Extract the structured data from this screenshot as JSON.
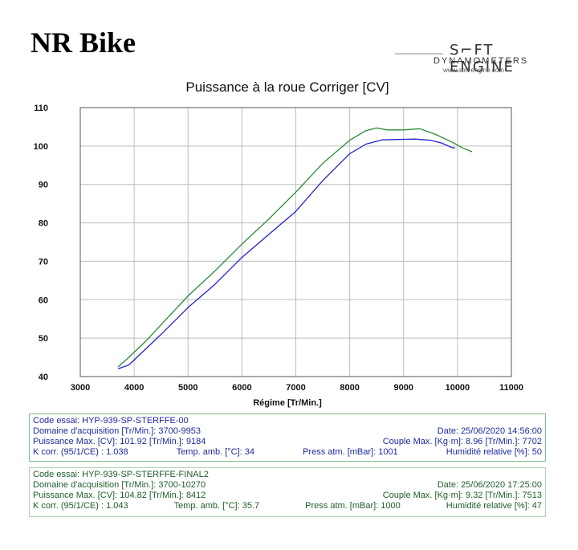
{
  "header": {
    "title": "NR Bike",
    "logo_mark": "S⌐FT ENGINE",
    "logo_sub": "DYNAMOMETERS",
    "logo_url": "www.soft-engine.com"
  },
  "chart_data": {
    "type": "line",
    "title": "Puissance à la roue Corriger [CV]",
    "xlabel": "Régime [Tr/Min.]",
    "ylabel": "",
    "xlim": [
      3000,
      11000
    ],
    "ylim": [
      40,
      110
    ],
    "x_ticks": [
      3000,
      4000,
      5000,
      6000,
      7000,
      8000,
      9000,
      10000,
      11000
    ],
    "y_ticks": [
      40,
      50,
      60,
      70,
      80,
      90,
      100,
      110
    ],
    "x_tick_labels": [
      "3000",
      "4000",
      "5000",
      "6000",
      "7000",
      "8000",
      "9000",
      "10000",
      "11000"
    ],
    "y_tick_labels": [
      "40",
      "50",
      "60",
      "70",
      "80",
      "90",
      "100",
      "110"
    ],
    "grid": true,
    "series": [
      {
        "name": "HYP-939-SP-STERFFE-00",
        "color": "#2222cc",
        "x": [
          3700,
          3900,
          4200,
          4500,
          5000,
          5500,
          6000,
          6500,
          7000,
          7500,
          8000,
          8300,
          8600,
          8900,
          9200,
          9500,
          9700,
          9900,
          9953
        ],
        "y": [
          42,
          43,
          47,
          51,
          58,
          64,
          71,
          77,
          83,
          91,
          98,
          100.5,
          101.6,
          101.7,
          101.8,
          101.5,
          100.8,
          99.6,
          99.5
        ]
      },
      {
        "name": "HYP-939-SP-STERFFE-FINAL2",
        "color": "#2a8a3a",
        "x": [
          3700,
          3900,
          4200,
          4500,
          5000,
          5500,
          6000,
          6500,
          7000,
          7500,
          8000,
          8300,
          8500,
          8700,
          9000,
          9300,
          9600,
          9900,
          10100,
          10270
        ],
        "y": [
          42.5,
          45,
          49,
          53.5,
          61,
          67.5,
          74.5,
          81,
          88,
          95.5,
          101.5,
          104,
          104.7,
          104.2,
          104.2,
          104.5,
          103,
          101,
          99.5,
          98.5
        ]
      }
    ]
  },
  "tests": [
    {
      "color": "#1d2a9c",
      "code": "Code essai: HYP-939-SP-STERFFE-00",
      "domaine": "Domaine d'acquisition [Tr/Min.]: 3700-9953",
      "date": "Date: 25/06/2020   14:56:00",
      "puissance": "Puissance Max. [CV]: 101.92   [Tr/Min.]: 9184",
      "couple": "Couple Max. [Kg·m]: 8.96   [Tr/Min.]: 7702",
      "kcorr": "K corr. (95/1/CE) : 1.038",
      "temp": "Temp. amb. [°C]: 34",
      "press": "Press atm. [mBar]: 1001",
      "humidite": "Humidité relative [%]: 50"
    },
    {
      "color": "#1d5e2a",
      "code": "Code essai: HYP-939-SP-STERFFE-FINAL2",
      "domaine": "Domaine d'acquisition [Tr/Min.]: 3700-10270",
      "date": "Date: 25/06/2020   17:25:00",
      "puissance": "Puissance Max. [CV]: 104.82   [Tr/Min.]: 8412",
      "couple": "Couple Max. [Kg·m]: 9.32   [Tr/Min.]: 7513",
      "kcorr": "K corr. (95/1/CE) : 1.043",
      "temp": "Temp. amb. [°C]: 35.7",
      "press": "Press atm. [mBar]: 1000",
      "humidite": "Humidité relative [%]: 47"
    }
  ]
}
